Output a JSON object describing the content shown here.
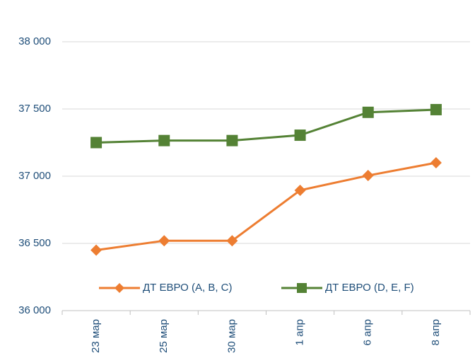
{
  "chart_data": {
    "type": "line",
    "categories": [
      "23 мар",
      "25 мар",
      "30 мар",
      "1 апр",
      "6 апр",
      "8 апр"
    ],
    "series": [
      {
        "name": "ДТ ЕВРО (A, B, C)",
        "color": "#ed7d31",
        "marker": "diamond",
        "values": [
          36450,
          36520,
          36520,
          36895,
          37005,
          37100
        ]
      },
      {
        "name": "ДТ ЕВРО (D, E, F)",
        "color": "#548235",
        "marker": "square",
        "values": [
          37250,
          37265,
          37265,
          37305,
          37475,
          37495
        ]
      }
    ],
    "ylim": [
      36000,
      38000
    ],
    "yticks": [
      {
        "value": 36000,
        "label": "36 000"
      },
      {
        "value": 36500,
        "label": "36 500"
      },
      {
        "value": 37000,
        "label": "37 000"
      },
      {
        "value": 37500,
        "label": "37 500"
      },
      {
        "value": 38000,
        "label": "38 000"
      }
    ],
    "grid": true,
    "legend": "bottom"
  }
}
